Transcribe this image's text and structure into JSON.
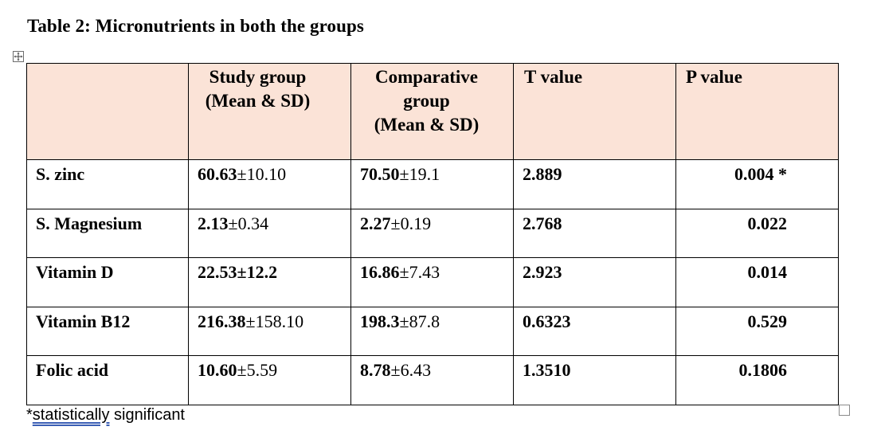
{
  "title": "Table 2: Micronutrients in both the groups",
  "table": {
    "headers": [
      {
        "lines": []
      },
      {
        "lines": [
          "Study group",
          "(Mean & SD)"
        ]
      },
      {
        "lines": [
          "Comparative",
          "group",
          "(Mean & SD)"
        ]
      },
      {
        "lines": [
          "T value"
        ]
      },
      {
        "lines": [
          "P value"
        ]
      }
    ],
    "rows": [
      {
        "label": "S. zinc",
        "study_mean": "60.63",
        "study_sd": "±10.10",
        "comp_mean": "70.50",
        "comp_sd": "±19.1",
        "t_value": "2.889",
        "p_value": "0.004 *"
      },
      {
        "label": "S. Magnesium",
        "study_mean": "2.13",
        "study_sd": "±0.34",
        "comp_mean": "2.27",
        "comp_sd": "±0.19",
        "t_value": "2.768",
        "p_value": "0.022"
      },
      {
        "label": "Vitamin D",
        "study_mean": "22.53",
        "study_sd": "±12.2",
        "comp_mean": "16.86",
        "comp_sd": "±7.43",
        "t_value": "2.923",
        "p_value": "0.014"
      },
      {
        "label": "Vitamin B12",
        "study_mean": "216.38",
        "study_sd": "±158.10",
        "comp_mean": "198.3",
        "comp_sd": "±87.8",
        "t_value": "0.6323",
        "p_value": "0.529"
      },
      {
        "label": "Folic acid",
        "study_mean": "10.60",
        "study_sd": "±5.59",
        "comp_mean": "8.78",
        "comp_sd": "±6.43",
        "t_value": "1.3510",
        "p_value": "0.1806"
      }
    ]
  },
  "footnote": {
    "prefix": "*",
    "underlined": "statistically",
    "rest": " significant"
  },
  "colors": {
    "header_bg": "#fbe3d7",
    "spellcheck_underline": "#3b5fb5"
  }
}
